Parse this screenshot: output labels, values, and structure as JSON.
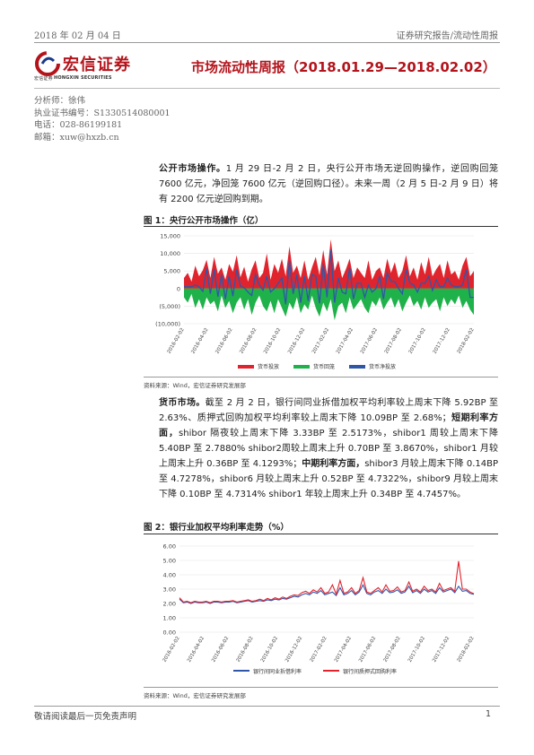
{
  "header": {
    "date": "2018 年 02 月 04 日",
    "category": "证券研究报告/流动性周报"
  },
  "logo": {
    "name_cn": "宏信证券",
    "name_small_cn": "宏信证券",
    "name_en": "HONGXIN SECURITIES"
  },
  "report_title": "市场流动性周报（2018.01.29—2018.02.02）",
  "analyst": {
    "name_line": "分析师：徐伟",
    "cert_line": "执业证书编号：S1330514080001",
    "phone_line": "电话：028-86199181",
    "email_line": "邮箱：xuw@hxzb.cn"
  },
  "section1": {
    "lead": "公开市场操作。",
    "body": "1 月 29 日-2 月 2 日，央行公开市场无逆回购操作，逆回购回笼 7600 亿元，净回笼 7600 亿元（逆回购口径）。未来一周（2 月 5 日-2 月 9 日）将有 2200 亿元逆回购到期。"
  },
  "figure1": {
    "title": "图 1：央行公开市场操作（亿）",
    "source": "资料来源：Wind，宏信证券研究发展部"
  },
  "section2": {
    "lead1": "货币市场。",
    "text1": "截至 2 月 2 日，银行间同业拆借加权平均利率较上周末下降 5.92BP 至 2.63%、质押式回购加权平均利率较上周末下降 10.09BP 至 2.68%；",
    "lead2": "短期利率方面，",
    "text2": "shibor 隔夜较上周末下降 3.33BP 至 2.5173%，shibor1 周较上周末下降 5.40BP 至 2.7880% shibor2周较上周末上升 0.70BP 至 3.8670%，shibor1 月较上周末上升 0.36BP 至 4.1293%；",
    "lead3": "中期利率方面，",
    "text3": "shibor3 月较上周末下降 0.14BP 至 4.7278%，shibor6 月较上周末上升 0.52BP 至 4.7322%，shibor9 月较上周末下降 0.10BP 至 4.7314% shibor1 年较上周末上升 0.34BP 至 4.7457%。"
  },
  "figure2": {
    "title": "图 2：银行业加权平均利率走势（%）",
    "source": "资料来源：Wind，宏信证券研究发展部"
  },
  "footer": {
    "disclaimer": "敬请阅读最后一页免责声明",
    "page": "1"
  },
  "colors": {
    "brand_red": "#b3141c",
    "chart_red": "#e0242e",
    "chart_green": "#1fb24a",
    "chart_blue": "#3056a8"
  },
  "chart_data": [
    {
      "type": "area",
      "title": "",
      "xlabel": "",
      "ylabel": "",
      "ylim": [
        -10000,
        15000
      ],
      "yticks": [
        "15,000",
        "10,000",
        "5,000",
        "0",
        "(5,000)",
        "(10,000)"
      ],
      "ytick_values": [
        15000,
        10000,
        5000,
        0,
        -5000,
        -10000
      ],
      "xticks": [
        "2016-02-02",
        "2016-04-02",
        "2016-06-02",
        "2016-08-02",
        "2016-10-02",
        "2016-12-02",
        "2017-02-02",
        "2017-04-02",
        "2017-06-02",
        "2017-08-02",
        "2017-10-02",
        "2017-12-02",
        "2018-02-02"
      ],
      "grid": true,
      "legend_position": "bottom",
      "series": [
        {
          "name": "货币投放",
          "kind": "area",
          "values": [
            3000,
            4500,
            2000,
            6500,
            3500,
            5200,
            8200,
            3000,
            9000,
            4200,
            6000,
            2500,
            7000,
            4800,
            9500,
            3200,
            6200,
            2000,
            5500,
            8000,
            3000,
            4500,
            10000,
            2500,
            7000,
            4500,
            8500,
            3500,
            12000,
            4500,
            6500,
            3000,
            8000,
            2500,
            6000,
            9000,
            3800,
            11000,
            4000,
            14000,
            5000,
            8000,
            3000,
            5500,
            8500,
            3000,
            6000,
            4500,
            3000,
            8000,
            2500,
            5000,
            6000,
            3000,
            8500,
            4500,
            7500,
            3000,
            5000,
            9500,
            3500,
            6000,
            2500,
            7500,
            4000,
            9000,
            3500,
            5500,
            7000,
            3000,
            8000,
            4000,
            5000,
            2500,
            6500,
            9000,
            3500,
            5000
          ]
        },
        {
          "name": "货币回笼",
          "kind": "area",
          "values": [
            -2500,
            -4000,
            -1500,
            -5500,
            -3000,
            -6000,
            -2500,
            -4500,
            -3500,
            -6500,
            -2000,
            -5500,
            -3500,
            -7000,
            -4000,
            -2500,
            -6000,
            -3000,
            -7500,
            -4000,
            -2000,
            -5000,
            -6500,
            -3500,
            -7000,
            -3000,
            -5500,
            -8000,
            -4000,
            -6000,
            -2500,
            -7000,
            -4500,
            -6000,
            -2000,
            -5500,
            -8000,
            -4000,
            -6500,
            -3000,
            -9000,
            -5000,
            -4000,
            -7000,
            -2500,
            -6000,
            -4500,
            -3000,
            -5500,
            -7000,
            -3500,
            -5000,
            -2500,
            -6000,
            -4000,
            -2500,
            -5500,
            -3000,
            -6500,
            -4000,
            -2000,
            -5000,
            -3500,
            -6000,
            -2500,
            -5500,
            -4000,
            -3000,
            -6500,
            -2500,
            -5000,
            -3000,
            -4500,
            -2000,
            -5500,
            -3500,
            -6000,
            -7500
          ]
        },
        {
          "name": "货币净投放",
          "kind": "line",
          "values": [
            500,
            500,
            500,
            1000,
            500,
            -800,
            5700,
            -1500,
            5500,
            -2300,
            4000,
            -3000,
            3500,
            -2200,
            5500,
            700,
            200,
            -1000,
            -2000,
            4000,
            1000,
            -500,
            3500,
            -1000,
            0,
            1500,
            3000,
            -4500,
            8000,
            -1500,
            4000,
            -4000,
            3500,
            -3500,
            4000,
            3500,
            -4200,
            7000,
            -2500,
            11000,
            -4000,
            3000,
            -1000,
            -1500,
            6000,
            -3000,
            1500,
            1500,
            -2500,
            1000,
            -1000,
            0,
            3500,
            -3000,
            4500,
            2000,
            2000,
            0,
            -1500,
            5500,
            1500,
            1000,
            -1000,
            1500,
            1500,
            3500,
            -500,
            2500,
            500,
            500,
            3000,
            1000,
            500,
            500,
            1000,
            5500,
            -2500,
            -2500
          ]
        }
      ]
    },
    {
      "type": "line",
      "title": "",
      "xlabel": "",
      "ylabel": "",
      "ylim": [
        0,
        6
      ],
      "yticks": [
        "6.00",
        "5.00",
        "4.00",
        "3.00",
        "2.00",
        "1.00",
        "0.00"
      ],
      "ytick_values": [
        6,
        5,
        4,
        3,
        2,
        1,
        0
      ],
      "xticks": [
        "2016-02-02",
        "2016-04-02",
        "2016-06-02",
        "2016-08-02",
        "2016-10-02",
        "2016-12-02",
        "2017-02-02",
        "2017-04-02",
        "2017-06-02",
        "2017-08-02",
        "2017-10-02",
        "2017-12-02",
        "2018-02-02"
      ],
      "grid": true,
      "legend_position": "bottom",
      "series": [
        {
          "name": "银行间同业拆借利率",
          "values": [
            2.3,
            2.05,
            2.1,
            2.0,
            2.1,
            2.05,
            2.05,
            2.1,
            2.0,
            2.1,
            2.1,
            2.05,
            2.1,
            2.1,
            2.15,
            2.05,
            2.1,
            2.15,
            2.2,
            2.1,
            2.15,
            2.2,
            2.15,
            2.25,
            2.2,
            2.3,
            2.25,
            2.35,
            2.3,
            2.4,
            2.5,
            2.45,
            2.6,
            2.7,
            2.6,
            2.8,
            2.7,
            2.9,
            2.6,
            2.7,
            2.8,
            2.55,
            3.1,
            2.6,
            2.7,
            2.9,
            2.6,
            2.8,
            3.3,
            2.7,
            2.6,
            2.8,
            2.9,
            2.7,
            3.0,
            2.75,
            2.8,
            2.95,
            2.7,
            2.8,
            3.2,
            2.75,
            2.9,
            2.7,
            3.0,
            2.8,
            2.9,
            2.7,
            3.1,
            2.8,
            2.9,
            3.0,
            2.75,
            3.2,
            2.85,
            2.9,
            2.7,
            2.63
          ]
        },
        {
          "name": "银行间质押式回购利率",
          "values": [
            2.4,
            2.1,
            2.15,
            2.05,
            2.15,
            2.1,
            2.1,
            2.15,
            2.05,
            2.15,
            2.15,
            2.1,
            2.15,
            2.15,
            2.2,
            2.1,
            2.15,
            2.2,
            2.25,
            2.15,
            2.2,
            2.3,
            2.2,
            2.35,
            2.25,
            2.4,
            2.3,
            2.45,
            2.35,
            2.5,
            2.6,
            2.55,
            2.75,
            2.85,
            2.7,
            2.95,
            2.8,
            3.1,
            2.7,
            2.8,
            3.3,
            2.65,
            3.6,
            2.7,
            2.8,
            3.1,
            2.7,
            2.9,
            3.8,
            2.8,
            2.7,
            2.9,
            3.1,
            2.8,
            3.3,
            2.85,
            2.9,
            3.15,
            2.8,
            2.9,
            3.5,
            2.85,
            3.0,
            2.8,
            3.2,
            2.9,
            3.0,
            2.8,
            3.4,
            2.9,
            3.0,
            3.1,
            2.85,
            4.95,
            3.0,
            3.0,
            2.8,
            2.68
          ]
        }
      ]
    }
  ]
}
